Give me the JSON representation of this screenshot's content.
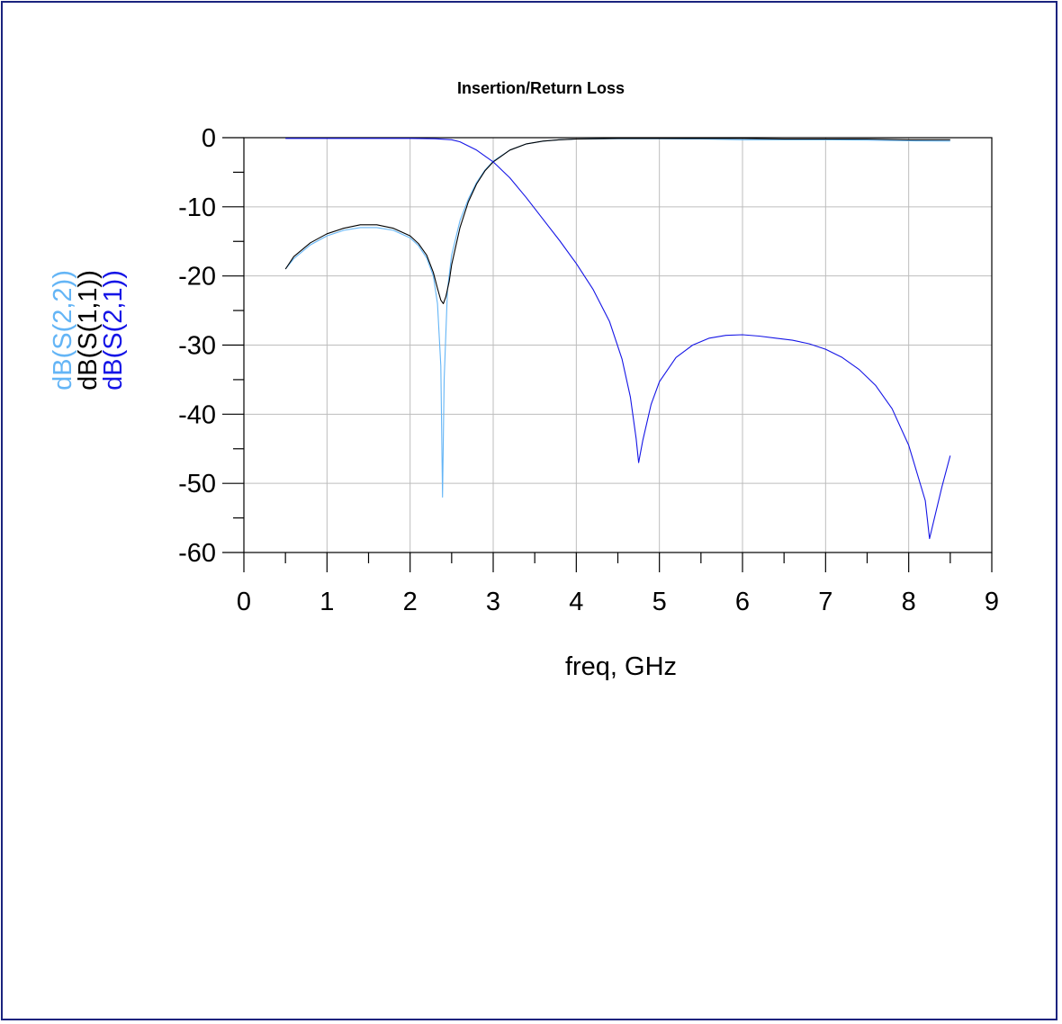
{
  "chart_data": {
    "type": "line",
    "title": "Insertion/Return Loss",
    "xlabel": "freq, GHz",
    "xlim": [
      0,
      9
    ],
    "ylim": [
      -60,
      0
    ],
    "xticks": [
      "0",
      "1",
      "2",
      "3",
      "4",
      "5",
      "6",
      "7",
      "8",
      "9"
    ],
    "yticks": [
      "0",
      "-10",
      "-20",
      "-30",
      "-40",
      "-50",
      "-60"
    ],
    "grid": true,
    "series": [
      {
        "name": "dB(S(2,2))",
        "color": "#64b5f6",
        "x": [
          0.5,
          0.6,
          0.8,
          1.0,
          1.2,
          1.4,
          1.6,
          1.8,
          2.0,
          2.1,
          2.2,
          2.28,
          2.33,
          2.37,
          2.39,
          2.41,
          2.45,
          2.5,
          2.6,
          2.7,
          2.8,
          2.9,
          3.0,
          3.2,
          3.4,
          3.6,
          3.8,
          4.0,
          4.5,
          5.0,
          5.5,
          6.0,
          6.5,
          7.0,
          7.5,
          8.0,
          8.5
        ],
        "y": [
          -19.0,
          -17.5,
          -15.5,
          -14.2,
          -13.4,
          -13.0,
          -13.0,
          -13.4,
          -14.5,
          -15.6,
          -17.4,
          -20.0,
          -24.0,
          -33.0,
          -52.0,
          -35.0,
          -22.0,
          -17.0,
          -12.0,
          -8.9,
          -6.5,
          -4.7,
          -3.4,
          -1.8,
          -0.9,
          -0.5,
          -0.3,
          -0.2,
          -0.15,
          -0.15,
          -0.2,
          -0.3,
          -0.3,
          -0.3,
          -0.35,
          -0.45,
          -0.5
        ]
      },
      {
        "name": "dB(S(1,1))",
        "color": "#000000",
        "x": [
          0.5,
          0.6,
          0.8,
          1.0,
          1.2,
          1.4,
          1.6,
          1.8,
          2.0,
          2.1,
          2.2,
          2.28,
          2.33,
          2.37,
          2.4,
          2.43,
          2.47,
          2.5,
          2.6,
          2.7,
          2.8,
          2.9,
          3.0,
          3.2,
          3.4,
          3.6,
          3.8,
          4.0,
          4.5,
          5.0,
          5.5,
          6.0,
          6.5,
          7.0,
          7.5,
          8.0,
          8.5
        ],
        "y": [
          -19.0,
          -17.2,
          -15.2,
          -13.9,
          -13.1,
          -12.6,
          -12.6,
          -13.1,
          -14.2,
          -15.3,
          -17.0,
          -19.5,
          -21.8,
          -23.5,
          -24.0,
          -23.0,
          -20.8,
          -18.4,
          -13.0,
          -9.3,
          -6.7,
          -4.8,
          -3.5,
          -1.8,
          -0.9,
          -0.5,
          -0.3,
          -0.2,
          -0.1,
          -0.1,
          -0.1,
          -0.1,
          -0.2,
          -0.2,
          -0.2,
          -0.3,
          -0.3
        ]
      },
      {
        "name": "dB(S(2,1))",
        "color": "#1515e6",
        "x": [
          0.5,
          1.0,
          1.5,
          2.0,
          2.3,
          2.5,
          2.6,
          2.8,
          3.0,
          3.2,
          3.4,
          3.6,
          3.8,
          4.0,
          4.2,
          4.4,
          4.55,
          4.65,
          4.72,
          4.75,
          4.8,
          4.9,
          5.0,
          5.2,
          5.4,
          5.6,
          5.8,
          6.0,
          6.2,
          6.4,
          6.6,
          6.8,
          7.0,
          7.2,
          7.4,
          7.6,
          7.8,
          8.0,
          8.1,
          8.2,
          8.25,
          8.3,
          8.4,
          8.5
        ],
        "y": [
          -0.1,
          -0.1,
          -0.1,
          -0.1,
          -0.15,
          -0.3,
          -0.6,
          -1.8,
          -3.5,
          -5.8,
          -8.7,
          -11.8,
          -14.9,
          -18.2,
          -21.9,
          -26.6,
          -32.0,
          -37.5,
          -43.5,
          -47.0,
          -43.8,
          -38.6,
          -35.3,
          -31.8,
          -30.0,
          -29.0,
          -28.6,
          -28.5,
          -28.7,
          -29.0,
          -29.3,
          -29.8,
          -30.6,
          -31.8,
          -33.5,
          -35.8,
          -39.2,
          -44.5,
          -48.5,
          -52.5,
          -58.0,
          -55.5,
          -50.5,
          -46.0
        ]
      }
    ]
  }
}
